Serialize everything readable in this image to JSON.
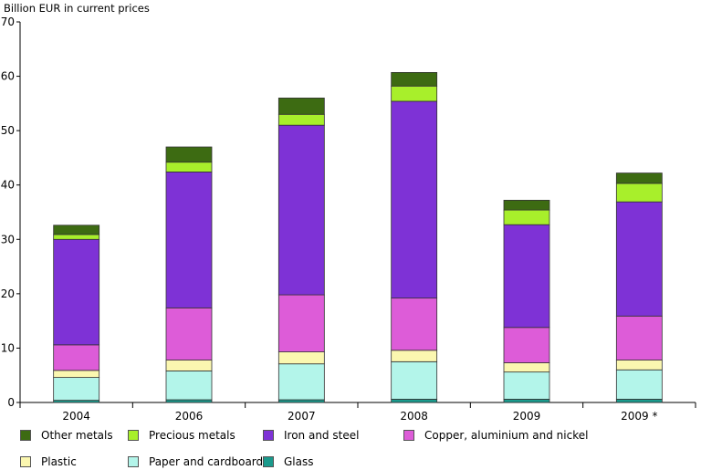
{
  "chart_data": {
    "type": "bar",
    "stacked": true,
    "title": "",
    "ylabel": "Billion EUR in current prices",
    "xlabel": "",
    "ylim": [
      0,
      70
    ],
    "yticks": [
      0,
      10,
      20,
      30,
      40,
      50,
      60,
      70
    ],
    "grid": false,
    "legend_position": "bottom",
    "categories": [
      "2004",
      "2006",
      "2007",
      "2008",
      "2009",
      "2009 *"
    ],
    "series": [
      {
        "name": "Glass",
        "color": "#1a9a8c",
        "values": [
          0.4,
          0.5,
          0.5,
          0.6,
          0.6,
          0.6
        ]
      },
      {
        "name": "Paper and cardboard",
        "color": "#b3f5ea",
        "values": [
          4.2,
          5.3,
          6.6,
          6.9,
          5.0,
          5.4
        ]
      },
      {
        "name": "Plastic",
        "color": "#fbf7b0",
        "values": [
          1.3,
          2.0,
          2.2,
          2.1,
          1.7,
          1.8
        ]
      },
      {
        "name": "Copper, aluminium and nickel",
        "color": "#dd5cd8",
        "values": [
          4.7,
          9.6,
          10.5,
          9.6,
          6.5,
          8.1
        ]
      },
      {
        "name": "Iron and steel",
        "color": "#7e32d6",
        "values": [
          19.4,
          25.0,
          31.2,
          36.2,
          18.9,
          21.0
        ]
      },
      {
        "name": "Precious metals",
        "color": "#a8ef2b",
        "values": [
          0.9,
          1.8,
          2.0,
          2.8,
          2.7,
          3.4
        ]
      },
      {
        "name": "Other metals",
        "color": "#3d6b12",
        "values": [
          1.7,
          2.8,
          3.0,
          2.5,
          1.8,
          1.9
        ]
      }
    ],
    "legend_order": [
      "Other metals",
      "Precious metals",
      "Iron and steel",
      "Copper, aluminium and nickel",
      "Plastic",
      "Paper and cardboard",
      "Glass"
    ]
  }
}
